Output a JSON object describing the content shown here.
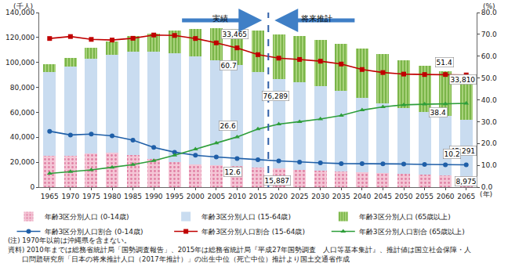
{
  "chart_data": {
    "type": "bar",
    "stacked": true,
    "grid": false,
    "legend": "bottom",
    "y_label": "(千人)",
    "y2_label": "(%)",
    "x_label": "(年)",
    "categories": [
      "1965",
      "1970",
      "1975",
      "1980",
      "1985",
      "1990",
      "1995",
      "2000",
      "2005",
      "2010",
      "2015",
      "2020",
      "2025",
      "2030",
      "2035",
      "2040",
      "2045",
      "2050",
      "2055",
      "2060",
      "2065"
    ],
    "divider_after": "2015",
    "period_labels": [
      "実績",
      "将来推計"
    ],
    "ylim": [
      0,
      140000
    ],
    "yticks": [
      0,
      {
        "value": 20000,
        "label": "20,000"
      },
      {
        "value": 40000,
        "label": "40,000"
      },
      {
        "value": 60000,
        "label": "60,000"
      },
      {
        "value": 80000,
        "label": "80,000"
      },
      {
        "value": 100000,
        "label": "100,000"
      },
      {
        "value": 120000,
        "label": "120,000"
      },
      {
        "value": 140000,
        "label": "140,000"
      }
    ],
    "y2lim": [
      0,
      80
    ],
    "y2ticks": [
      {
        "value": 0,
        "label": "0.0"
      },
      {
        "value": 10,
        "label": "10.0"
      },
      {
        "value": 20,
        "label": "20.0"
      },
      {
        "value": 30,
        "label": "30.0"
      },
      {
        "value": 40,
        "label": "40.0"
      },
      {
        "value": 50,
        "label": "50.0"
      },
      {
        "value": 60,
        "label": "60.0"
      },
      {
        "value": 70,
        "label": "70.0"
      },
      {
        "value": 80,
        "label": "80.0"
      }
    ],
    "series": [
      {
        "name": "年齢3区分別人口 (0-14歳)",
        "type": "bar",
        "color": "#f4c6d6",
        "marker": "dots",
        "values": [
          25166,
          24823,
          27221,
          27507,
          26033,
          22486,
          20014,
          18472,
          17521,
          16803,
          15887,
          15075,
          14073,
          13212,
          12457,
          11936,
          11384,
          10767,
          10123,
          9508,
          8975
        ]
      },
      {
        "name": "年齢3区分別人口 (15-64歳)",
        "type": "bar",
        "color": "#c9dcf0",
        "marker": "solid",
        "values": [
          66928,
          71566,
          75807,
          78835,
          82506,
          85904,
          87165,
          86220,
          84092,
          81032,
          76289,
          71406,
          70341,
          67729,
          64494,
          59777,
          55845,
          52750,
          50276,
          47928,
          45291
        ]
      },
      {
        "name": "年齢3区分別人口 (65歳以上)",
        "type": "bar",
        "color": "#a8d27a",
        "marker": "stripes",
        "values": [
          6181,
          7331,
          8865,
          10647,
          12468,
          14895,
          18261,
          22005,
          25672,
          29246,
          33465,
          36192,
          36771,
          37160,
          37817,
          39206,
          39192,
          38406,
          37042,
          35403,
          33810
        ]
      },
      {
        "name": "年齢3区分別人口割合 (0-14歳)",
        "type": "line",
        "axis": "y2",
        "color": "#1f5fa8",
        "marker": "circle",
        "values": [
          25.6,
          23.9,
          24.3,
          23.5,
          21.5,
          18.2,
          16.0,
          14.6,
          13.8,
          13.1,
          12.6,
          12.0,
          11.5,
          11.1,
          10.8,
          10.8,
          10.7,
          10.6,
          10.4,
          10.2,
          10.2
        ]
      },
      {
        "name": "年齢3区分別人口割合 (15-64歳)",
        "type": "line",
        "axis": "y2",
        "color": "#c00000",
        "marker": "square",
        "values": [
          68.1,
          69.0,
          67.7,
          67.4,
          68.2,
          69.7,
          69.5,
          68.1,
          66.1,
          63.8,
          60.7,
          59.1,
          58.5,
          57.7,
          56.4,
          53.9,
          52.5,
          51.8,
          51.6,
          51.6,
          51.4
        ]
      },
      {
        "name": "年齢3区分別人口割合 (65歳以上)",
        "type": "line",
        "axis": "y2",
        "color": "#2e9e3a",
        "marker": "triangle-up",
        "values": [
          6.3,
          7.1,
          7.9,
          9.1,
          10.3,
          12.1,
          14.6,
          17.4,
          20.2,
          23.0,
          26.6,
          28.9,
          30.0,
          31.2,
          32.8,
          35.3,
          36.8,
          37.7,
          38.0,
          38.1,
          38.4
        ]
      }
    ],
    "annotations": [
      {
        "text": "33,465",
        "series": 2,
        "category": "2015"
      },
      {
        "text": "60.7",
        "series": 4,
        "category": "2015"
      },
      {
        "text": "76,289",
        "series": 1,
        "category": "2015"
      },
      {
        "text": "26.6",
        "series": 5,
        "category": "2015"
      },
      {
        "text": "12.6",
        "series": 3,
        "category": "2015"
      },
      {
        "text": "15,887",
        "series": 0,
        "category": "2015"
      },
      {
        "text": "51.4",
        "series": 4,
        "category": "2065"
      },
      {
        "text": "33,810",
        "series": 2,
        "category": "2065"
      },
      {
        "text": "38.4",
        "series": 5,
        "category": "2065"
      },
      {
        "text": "45,291",
        "series": 1,
        "category": "2065"
      },
      {
        "text": "10.2",
        "series": 3,
        "category": "2065"
      },
      {
        "text": "8,975",
        "series": 0,
        "category": "2065"
      }
    ],
    "notes": [
      "(注) 1970年以前は沖縄県を含まない。",
      "資料) 2010年までは総務省統計局「国勢調査報告」、2015年は総務省統計局『平成27年国勢調査　人口等基本集計』、推計値は国立社会保障・人",
      "　　口問題研究所「日本の将来推計人口（2017年推計）」の出生中位（死亡中位）推計より国土交通省作成"
    ]
  }
}
